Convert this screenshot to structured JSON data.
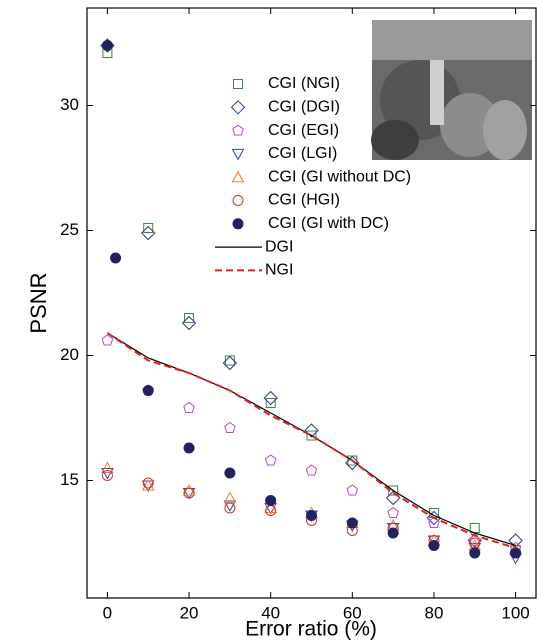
{
  "chart_data": {
    "type": "scatter",
    "x_label": "Error ratio (%)",
    "y_label": "PSNR",
    "xlim": [
      -5,
      105
    ],
    "ylim": [
      10.3,
      33.9
    ],
    "xticks": [
      0,
      20,
      40,
      60,
      80,
      100
    ],
    "yticks": [
      15,
      20,
      25,
      30
    ],
    "series": [
      {
        "name": "CGI (NGI)",
        "color": "#3a8a3a",
        "marker": "square",
        "x": [
          0,
          10,
          20,
          30,
          40,
          50,
          60,
          70,
          80,
          90,
          100
        ],
        "values": [
          32.1,
          25.1,
          21.5,
          19.8,
          18.1,
          16.8,
          15.8,
          14.6,
          13.7,
          13.1,
          12.2
        ]
      },
      {
        "name": "CGI (DGI)",
        "color": "#35358f",
        "marker": "diamond",
        "x": [
          0,
          10,
          20,
          30,
          40,
          50,
          60,
          70,
          80,
          90,
          100
        ],
        "values": [
          32.4,
          24.9,
          21.3,
          19.7,
          18.3,
          17.0,
          15.7,
          14.3,
          13.5,
          12.6,
          12.6
        ]
      },
      {
        "name": "CGI (EGI)",
        "color": "#b44fc8",
        "marker": "pentagon",
        "x": [
          0,
          10,
          20,
          30,
          40,
          50,
          60,
          70,
          80,
          90,
          100
        ],
        "values": [
          20.6,
          18.6,
          17.9,
          17.1,
          15.8,
          15.4,
          14.6,
          13.7,
          13.3,
          12.6,
          12.3
        ]
      },
      {
        "name": "CGI (LGI)",
        "color": "#3344aa",
        "marker": "triangle-down",
        "x": [
          0,
          10,
          20,
          30,
          40,
          50,
          60,
          70,
          80,
          90,
          100
        ],
        "values": [
          15.3,
          14.8,
          14.5,
          14.0,
          13.9,
          13.6,
          13.2,
          13.1,
          12.6,
          12.3,
          11.9
        ]
      },
      {
        "name": "CGI (GI without DC)",
        "color": "#f08020",
        "marker": "triangle-up",
        "x": [
          0,
          10,
          20,
          30,
          40,
          50,
          60,
          70,
          80,
          90,
          100
        ],
        "values": [
          15.5,
          14.8,
          14.6,
          14.3,
          13.9,
          13.7,
          13.3,
          13.2,
          12.6,
          12.4,
          12.2
        ]
      },
      {
        "name": "CGI (HGI)",
        "color": "#e03020",
        "marker": "circle",
        "x": [
          0,
          10,
          20,
          30,
          40,
          50,
          60,
          70,
          80,
          90,
          100
        ],
        "values": [
          15.2,
          14.9,
          14.5,
          13.9,
          13.8,
          13.4,
          13.0,
          13.1,
          12.6,
          12.5,
          12.1
        ]
      },
      {
        "name": "CGI (GI with DC)",
        "color": "#22225e",
        "marker": "filled-circle",
        "x": [
          0,
          2,
          10,
          20,
          30,
          40,
          50,
          60,
          70,
          80,
          90,
          100
        ],
        "values": [
          32.4,
          23.9,
          18.6,
          16.3,
          15.3,
          14.2,
          13.6,
          13.3,
          12.9,
          12.4,
          12.1,
          12.1
        ]
      },
      {
        "name": "DGI",
        "color": "#000000",
        "marker": "line",
        "x": [
          0,
          10,
          20,
          30,
          40,
          50,
          60,
          70,
          80,
          90,
          100
        ],
        "values": [
          20.9,
          19.9,
          19.3,
          18.6,
          17.7,
          16.8,
          15.8,
          14.6,
          13.6,
          12.9,
          12.4
        ]
      },
      {
        "name": "NGI",
        "color": "#e02020",
        "marker": "dashed-line",
        "x": [
          0,
          10,
          20,
          30,
          40,
          50,
          60,
          70,
          80,
          90,
          100
        ],
        "values": [
          20.9,
          19.8,
          19.3,
          18.6,
          17.6,
          16.8,
          15.8,
          14.5,
          13.5,
          12.8,
          12.3
        ]
      }
    ]
  }
}
